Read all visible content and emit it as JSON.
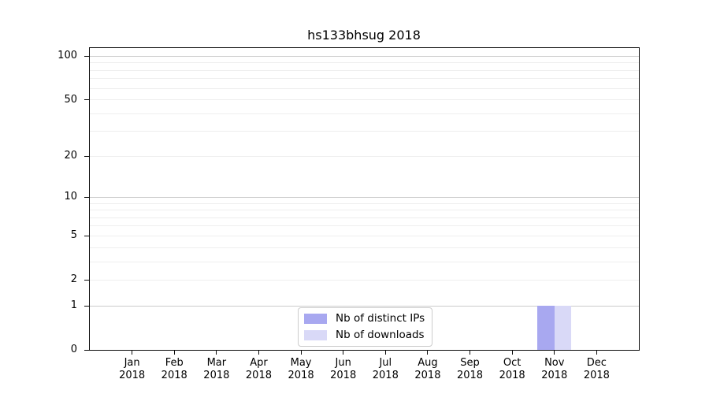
{
  "chart_data": {
    "type": "bar",
    "title": "hs133bhsug 2018",
    "categories": [
      {
        "month": "Jan",
        "year": "2018"
      },
      {
        "month": "Feb",
        "year": "2018"
      },
      {
        "month": "Mar",
        "year": "2018"
      },
      {
        "month": "Apr",
        "year": "2018"
      },
      {
        "month": "May",
        "year": "2018"
      },
      {
        "month": "Jun",
        "year": "2018"
      },
      {
        "month": "Jul",
        "year": "2018"
      },
      {
        "month": "Aug",
        "year": "2018"
      },
      {
        "month": "Sep",
        "year": "2018"
      },
      {
        "month": "Oct",
        "year": "2018"
      },
      {
        "month": "Nov",
        "year": "2018"
      },
      {
        "month": "Dec",
        "year": "2018"
      }
    ],
    "series": [
      {
        "name": "Nb of distinct IPs",
        "color": "#a8a8f0",
        "values": [
          0,
          0,
          0,
          0,
          0,
          0,
          0,
          0,
          0,
          0,
          1,
          0
        ]
      },
      {
        "name": "Nb of downloads",
        "color": "#d9d9f7",
        "values": [
          0,
          0,
          0,
          0,
          0,
          0,
          0,
          0,
          0,
          0,
          1,
          0
        ]
      }
    ],
    "xlabel": "",
    "ylabel": "",
    "y_ticks": [
      0,
      1,
      2,
      5,
      10,
      20,
      50,
      100
    ],
    "y_scale": "log10(1+y)",
    "ylim": [
      0,
      114
    ],
    "grid": true,
    "legend_position": "lower center",
    "colors": {
      "background": "#ffffff",
      "axis": "#0a0a0a",
      "text": "#000000",
      "grid_major": "#cccccc",
      "grid_minor": "#eeeeee",
      "legend_border": "#cccccc"
    }
  }
}
